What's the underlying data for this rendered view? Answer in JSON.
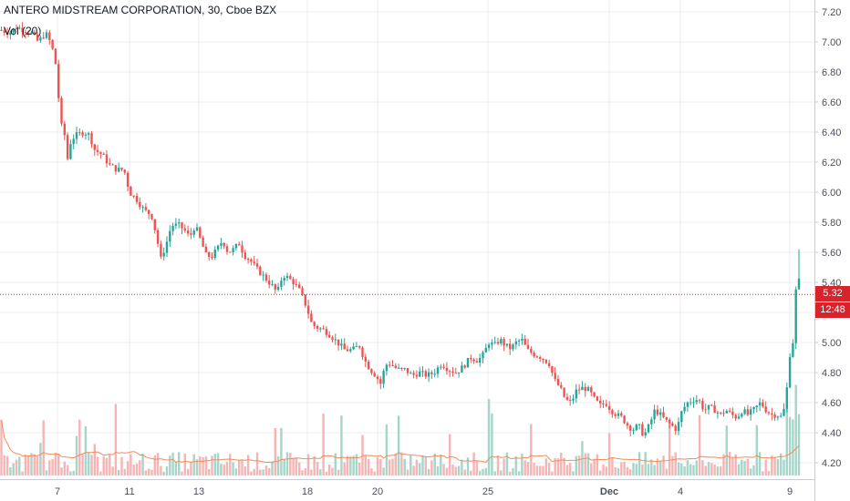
{
  "header": {
    "title": "ANTERO MIDSTREAM CORPORATION, 30, Cboe BZX",
    "volume_indicator": "Vol (20)"
  },
  "price_tags": {
    "last_price": "5.32",
    "countdown": "12:48"
  },
  "colors": {
    "up": "#26a69a",
    "down": "#ef5350",
    "up_volume": "#a5d6c9",
    "down_volume": "#f5b5b4",
    "ma": "#f28c5a",
    "grid": "#e8ecf1",
    "axis_text": "#4a4f5a",
    "last_price_line": "#d9232a"
  },
  "chart_data": {
    "type": "candlestick",
    "title": "ANTERO MIDSTREAM CORPORATION, 30, Cboe BZX",
    "x_tick_labels": [
      "7",
      "11",
      "13",
      "18",
      "20",
      "25",
      "Dec",
      "4",
      "9"
    ],
    "y_tick_labels": [
      "7.20",
      "7.00",
      "6.80",
      "6.60",
      "6.40",
      "6.20",
      "6.00",
      "5.80",
      "5.60",
      "5.40",
      "5.20",
      "5.00",
      "4.80",
      "4.60",
      "4.40",
      "4.20"
    ],
    "ylim": [
      4.12,
      7.25
    ],
    "last_price": 5.32,
    "grid": true,
    "price_path": [
      [
        0,
        7.08
      ],
      [
        10,
        7.06
      ],
      [
        18,
        7.1
      ],
      [
        26,
        7.08
      ],
      [
        34,
        7.06
      ],
      [
        42,
        7.0
      ],
      [
        50,
        7.06
      ],
      [
        55,
        7.0
      ],
      [
        60,
        6.9
      ],
      [
        63,
        6.75
      ],
      [
        66,
        6.45
      ],
      [
        70,
        6.42
      ],
      [
        74,
        6.22
      ],
      [
        78,
        6.35
      ],
      [
        84,
        6.38
      ],
      [
        92,
        6.4
      ],
      [
        98,
        6.38
      ],
      [
        104,
        6.28
      ],
      [
        112,
        6.25
      ],
      [
        120,
        6.18
      ],
      [
        128,
        6.15
      ],
      [
        136,
        6.15
      ],
      [
        142,
        6.0
      ],
      [
        150,
        5.95
      ],
      [
        158,
        5.88
      ],
      [
        166,
        5.85
      ],
      [
        172,
        5.7
      ],
      [
        176,
        5.55
      ],
      [
        182,
        5.65
      ],
      [
        188,
        5.78
      ],
      [
        196,
        5.78
      ],
      [
        202,
        5.75
      ],
      [
        208,
        5.7
      ],
      [
        214,
        5.78
      ],
      [
        220,
        5.68
      ],
      [
        226,
        5.58
      ],
      [
        232,
        5.57
      ],
      [
        238,
        5.62
      ],
      [
        244,
        5.68
      ],
      [
        250,
        5.6
      ],
      [
        256,
        5.62
      ],
      [
        262,
        5.66
      ],
      [
        268,
        5.58
      ],
      [
        274,
        5.55
      ],
      [
        280,
        5.5
      ],
      [
        286,
        5.46
      ],
      [
        292,
        5.42
      ],
      [
        298,
        5.38
      ],
      [
        304,
        5.33
      ],
      [
        310,
        5.45
      ],
      [
        316,
        5.43
      ],
      [
        322,
        5.4
      ],
      [
        328,
        5.35
      ],
      [
        334,
        5.27
      ],
      [
        338,
        5.2
      ],
      [
        342,
        5.12
      ],
      [
        348,
        5.1
      ],
      [
        356,
        5.08
      ],
      [
        362,
        5.05
      ],
      [
        370,
        5.0
      ],
      [
        378,
        4.95
      ],
      [
        386,
        4.95
      ],
      [
        394,
        4.98
      ],
      [
        400,
        4.88
      ],
      [
        406,
        4.82
      ],
      [
        412,
        4.78
      ],
      [
        418,
        4.72
      ],
      [
        422,
        4.85
      ],
      [
        428,
        4.86
      ],
      [
        436,
        4.82
      ],
      [
        444,
        4.82
      ],
      [
        452,
        4.78
      ],
      [
        460,
        4.8
      ],
      [
        468,
        4.78
      ],
      [
        476,
        4.8
      ],
      [
        484,
        4.86
      ],
      [
        492,
        4.82
      ],
      [
        500,
        4.8
      ],
      [
        508,
        4.84
      ],
      [
        516,
        4.9
      ],
      [
        524,
        4.88
      ],
      [
        530,
        4.92
      ],
      [
        536,
        5.0
      ],
      [
        542,
        4.98
      ],
      [
        548,
        5.02
      ],
      [
        554,
        4.98
      ],
      [
        560,
        4.96
      ],
      [
        566,
        5.0
      ],
      [
        572,
        5.02
      ],
      [
        578,
        4.95
      ],
      [
        586,
        4.92
      ],
      [
        594,
        4.9
      ],
      [
        602,
        4.86
      ],
      [
        608,
        4.75
      ],
      [
        614,
        4.7
      ],
      [
        620,
        4.62
      ],
      [
        626,
        4.6
      ],
      [
        632,
        4.68
      ],
      [
        640,
        4.7
      ],
      [
        646,
        4.68
      ],
      [
        652,
        4.62
      ],
      [
        658,
        4.58
      ],
      [
        664,
        4.6
      ],
      [
        670,
        4.55
      ],
      [
        676,
        4.52
      ],
      [
        682,
        4.5
      ],
      [
        688,
        4.45
      ],
      [
        694,
        4.42
      ],
      [
        700,
        4.45
      ],
      [
        706,
        4.38
      ],
      [
        712,
        4.45
      ],
      [
        718,
        4.55
      ],
      [
        724,
        4.52
      ],
      [
        730,
        4.48
      ],
      [
        736,
        4.45
      ],
      [
        742,
        4.42
      ],
      [
        748,
        4.55
      ],
      [
        754,
        4.6
      ],
      [
        760,
        4.62
      ],
      [
        766,
        4.62
      ],
      [
        772,
        4.55
      ],
      [
        778,
        4.57
      ],
      [
        784,
        4.55
      ],
      [
        790,
        4.52
      ],
      [
        796,
        4.55
      ],
      [
        802,
        4.52
      ],
      [
        808,
        4.5
      ],
      [
        814,
        4.55
      ],
      [
        820,
        4.52
      ],
      [
        826,
        4.55
      ],
      [
        834,
        4.6
      ],
      [
        840,
        4.55
      ],
      [
        846,
        4.52
      ],
      [
        852,
        4.52
      ],
      [
        858,
        4.5
      ],
      [
        862,
        4.64
      ],
      [
        866,
        4.92
      ],
      [
        870,
        5.02
      ],
      [
        874,
        5.5
      ],
      [
        878,
        5.32
      ]
    ]
  }
}
